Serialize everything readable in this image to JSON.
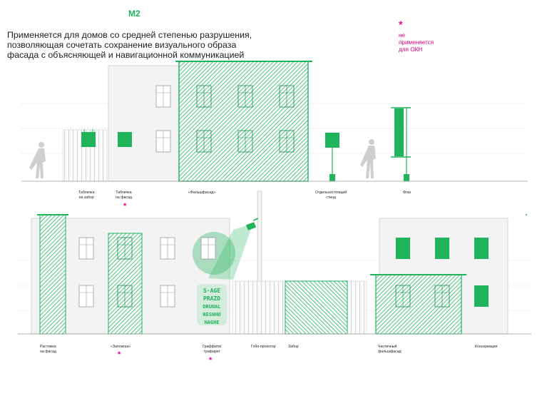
{
  "header": {
    "code": "М2",
    "intro_lines": [
      "Применяется для домов со средней степенью разрушения,",
      "позволяющая сочетать сохранение визуального образа",
      "фасада с объясняющей и навигационной коммуникацией"
    ],
    "star_symbol": "*",
    "note_lines": [
      "не",
      "применяется",
      "для ОКН"
    ]
  },
  "top_labels": {
    "fence_sign": [
      "Табличка",
      "на забор"
    ],
    "facade_sign": [
      "Табличка",
      "на фасад"
    ],
    "fake_facade": [
      "«Фальшфасад»"
    ],
    "standalone_stand": [
      "Отдельностоящий",
      "стенд"
    ],
    "flag": [
      "Флаг"
    ]
  },
  "bottom_labels": {
    "facade_banner": [
      "Растяжка",
      "на фасад"
    ],
    "patch": [
      "«Заплатка»"
    ],
    "graffiti": [
      "Граффити/",
      "трафарет"
    ],
    "gobo": [
      "Гобо-проектор"
    ],
    "fence": [
      "Забор"
    ],
    "partial_facade": [
      "Частичный",
      "фальшфасад"
    ],
    "conservation": [
      "Консервация"
    ]
  },
  "graffiti_text": [
    "S·AGE",
    "PRAZD",
    "DRUNAL",
    "RESNHO",
    "NAGHE"
  ],
  "colors": {
    "accent_green": "#1fb35c",
    "hatch_green": "#22b560",
    "marker_pink": "#e6007e",
    "building_fill": "#f3f3f3",
    "line_gray": "#c9c9c9"
  }
}
